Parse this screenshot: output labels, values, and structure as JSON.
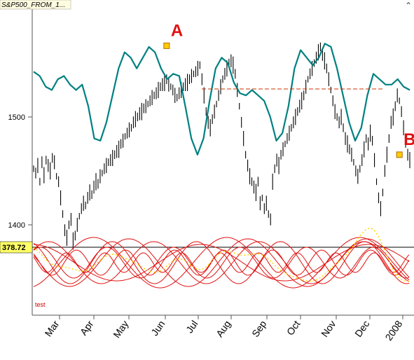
{
  "window": {
    "title_tab": "S&P500_FROM_1...",
    "scroll_glyph": "⌃"
  },
  "chart_data": {
    "type": "line",
    "title": "",
    "xlabel": "",
    "ylabel": "",
    "x_tick_labels": [
      "Mar",
      "Apr",
      "May",
      "Jun",
      "Jul",
      "Aug",
      "Sep",
      "Oct",
      "Nov",
      "Dec",
      "2008"
    ],
    "y_ticks": [
      1400,
      1500
    ],
    "ylim": [
      1320,
      1610
    ],
    "current_value_label": "378.72",
    "grid": false,
    "series": [
      {
        "style": "black price bars (daily high-low)",
        "values": [
          1452,
          1448,
          1455,
          1440,
          1458,
          1446,
          1460,
          1455,
          1450,
          1462,
          1458,
          1445,
          1440,
          1425,
          1410,
          1395,
          1388,
          1400,
          1405,
          1385,
          1390,
          1400,
          1408,
          1415,
          1420,
          1418,
          1425,
          1430,
          1428,
          1435,
          1440,
          1438,
          1445,
          1448,
          1452,
          1455,
          1458,
          1460,
          1462,
          1465,
          1468,
          1470,
          1475,
          1478,
          1482,
          1485,
          1488,
          1490,
          1495,
          1498,
          1500,
          1503,
          1505,
          1508,
          1510,
          1512,
          1515,
          1518,
          1520,
          1522,
          1525,
          1528,
          1530,
          1532,
          1535,
          1530,
          1528,
          1525,
          1520,
          1518,
          1522,
          1525,
          1528,
          1530,
          1532,
          1535,
          1538,
          1540,
          1542,
          1545,
          1548,
          1535,
          1520,
          1505,
          1495,
          1490,
          1498,
          1505,
          1512,
          1520,
          1528,
          1535,
          1540,
          1545,
          1550,
          1552,
          1548,
          1540,
          1525,
          1510,
          1495,
          1480,
          1465,
          1455,
          1445,
          1440,
          1435,
          1430,
          1440,
          1420,
          1425,
          1415,
          1420,
          1410,
          1405,
          1440,
          1452,
          1460,
          1455,
          1465,
          1470,
          1475,
          1480,
          1485,
          1490,
          1495,
          1500,
          1505,
          1510,
          1515,
          1520,
          1528,
          1535,
          1540,
          1545,
          1550,
          1555,
          1560,
          1565,
          1558,
          1552,
          1545,
          1535,
          1525,
          1515,
          1505,
          1500,
          1495,
          1500,
          1490,
          1480,
          1475,
          1470,
          1465,
          1458,
          1450,
          1445,
          1452,
          1460,
          1470,
          1480,
          1475,
          1485,
          1478,
          1460,
          1440,
          1425,
          1415,
          1430,
          1450,
          1465,
          1480,
          1495,
          1500,
          1510,
          1520,
          1515,
          1505,
          1490,
          1475,
          1465,
          1460
        ]
      },
      {
        "style": "teal cycle composite line",
        "values": [
          1542,
          1538,
          1528,
          1525,
          1535,
          1538,
          1530,
          1525,
          1530,
          1510,
          1480,
          1478,
          1495,
          1520,
          1545,
          1560,
          1555,
          1545,
          1555,
          1565,
          1560,
          1545,
          1535,
          1540,
          1538,
          1510,
          1480,
          1465,
          1480,
          1515,
          1545,
          1555,
          1550,
          1532,
          1522,
          1520,
          1525,
          1520,
          1515,
          1500,
          1478,
          1485,
          1510,
          1545,
          1562,
          1555,
          1548,
          1555,
          1568,
          1565,
          1545,
          1520,
          1495,
          1478,
          1490,
          1520,
          1540,
          1535,
          1530,
          1530,
          1535,
          1528,
          1525
        ]
      }
    ],
    "annotations": [
      {
        "label": "A",
        "x_index": 64,
        "y": 1566,
        "marker": "square"
      },
      {
        "label": "B",
        "x_index": 176,
        "y": 1465,
        "marker": "square"
      }
    ],
    "reference_line": {
      "style": "dashed red",
      "y": 1526
    },
    "indicator_panel": {
      "label": "test",
      "series_count": 8,
      "style": "red sinusoidal cycle components with yellow dotted composite"
    }
  }
}
